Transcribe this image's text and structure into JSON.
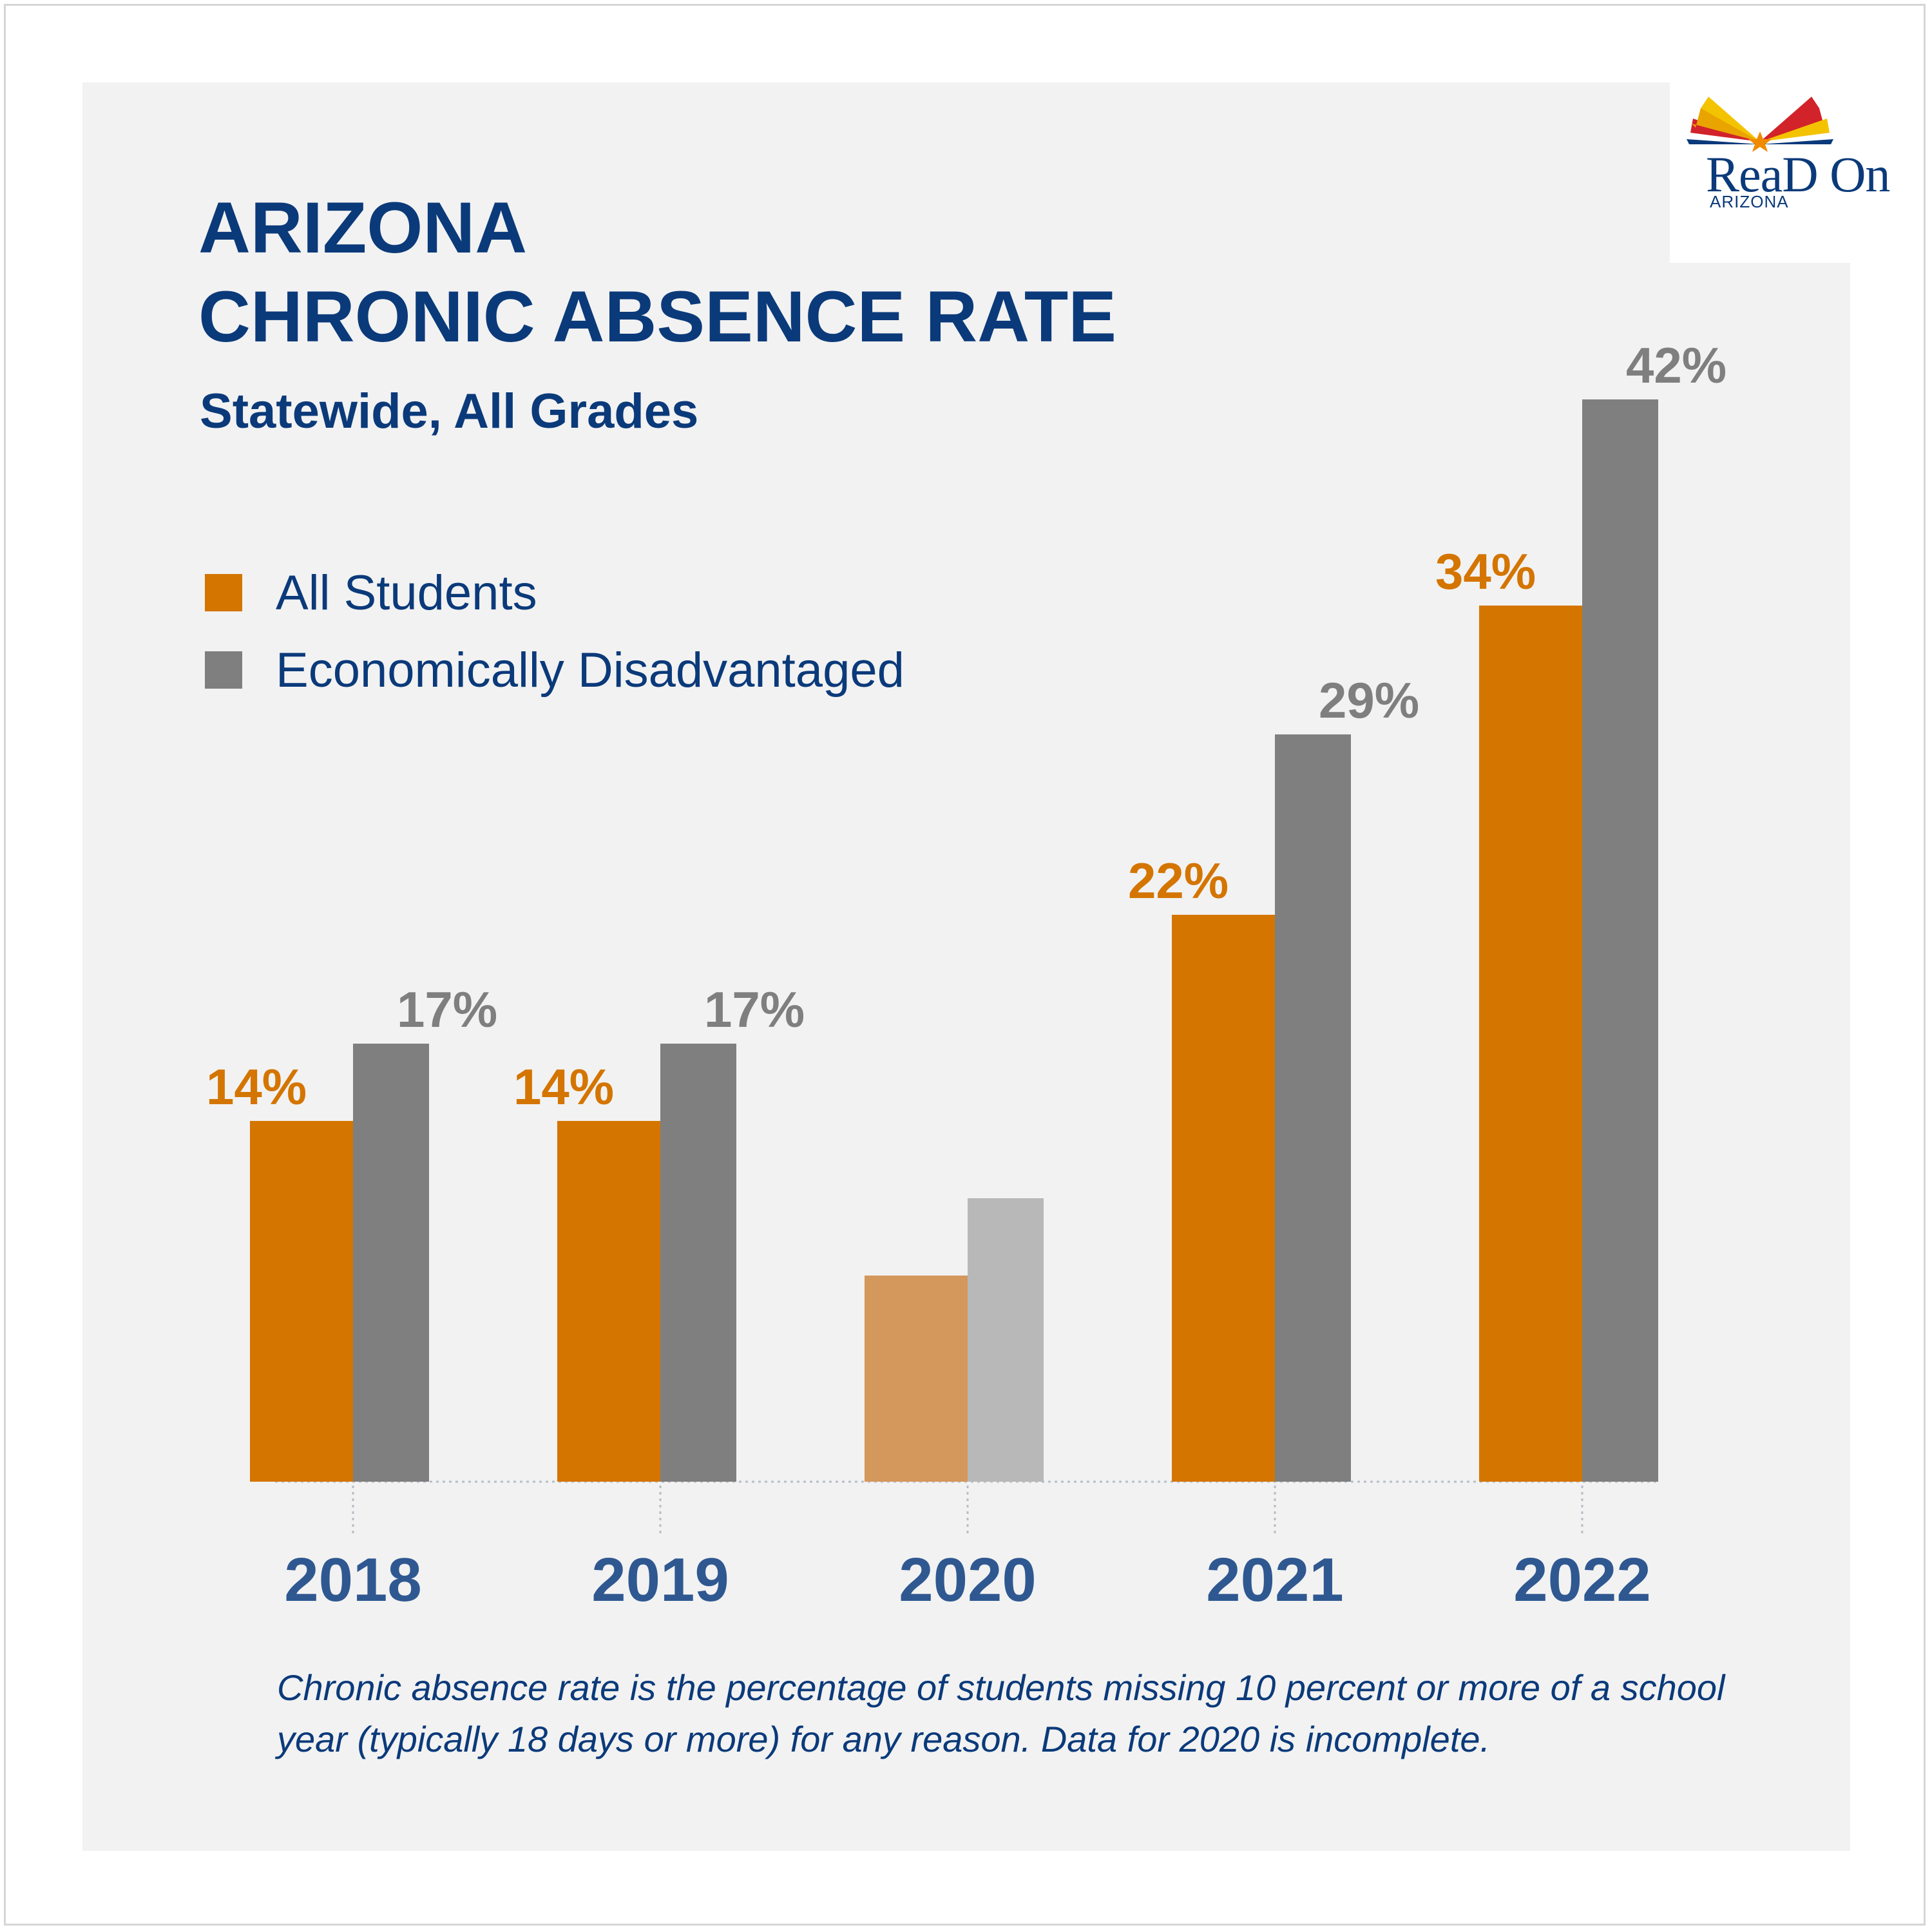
{
  "title_lines": [
    "ARIZONA",
    "CHRONIC ABSENCE RATE"
  ],
  "subtitle": "Statewide, All Grades",
  "logo": {
    "wordmark": "ReaD On",
    "sub": "ARIZONA"
  },
  "footnote": "Chronic absence rate is the percentage of students missing 10 percent or more of a school year (typically 18 days or more) for any reason. Data for 2020 is incomplete.",
  "colors": {
    "all_students": "#d47500",
    "econ_disadv": "#7f7f7f",
    "all_students_incomplete": "#d4975c",
    "econ_disadv_incomplete": "#b8b8b8",
    "text": "#0b3a7a",
    "year_label": "#2f5891"
  },
  "chart_data": {
    "type": "bar",
    "categories": [
      "2018",
      "2019",
      "2020",
      "2021",
      "2022"
    ],
    "series": [
      {
        "name": "All Students",
        "values": [
          14,
          14,
          8,
          22,
          34
        ],
        "labels": [
          "14%",
          "14%",
          "",
          "22%",
          "34%"
        ]
      },
      {
        "name": "Economically Disadvantaged",
        "values": [
          17,
          17,
          11,
          29,
          42
        ],
        "labels": [
          "17%",
          "17%",
          "",
          "29%",
          "42%"
        ]
      }
    ],
    "incomplete_categories": [
      "2020"
    ],
    "ylim": [
      0,
      42
    ],
    "grid": false,
    "legend": "top-left",
    "xlabel": "",
    "ylabel": ""
  }
}
